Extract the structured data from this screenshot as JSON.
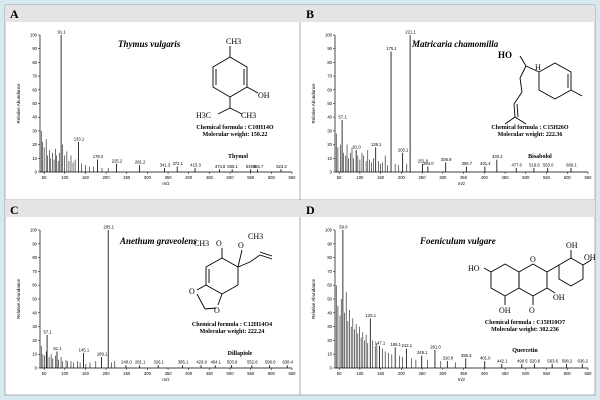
{
  "panels": [
    {
      "letter": "A",
      "species": "Thymus vulgaris",
      "formula": "Chemical formula : C10H14O",
      "mw": "Molecular weight: 150.22",
      "compound": "Thymol",
      "structure_labels": [
        "CH3",
        "OH",
        "H3C",
        "CH3"
      ],
      "chart_data": {
        "type": "bar",
        "ylabel": "Relative Abundance",
        "xlabel": "m/z",
        "xlim": [
          40,
          650
        ],
        "ylim": [
          0,
          100
        ],
        "xticks": [
          50,
          100,
          150,
          200,
          250,
          300,
          350,
          400,
          450,
          500,
          550,
          600,
          650
        ],
        "yticks": [
          0,
          10,
          20,
          30,
          40,
          50,
          60,
          70,
          80,
          90,
          100
        ],
        "labeled_peaks": [
          {
            "x": 91.1,
            "y": 100,
            "label": "91.1"
          },
          {
            "x": 133.1,
            "y": 22,
            "label": "133.1"
          },
          {
            "x": 179.2,
            "y": 9,
            "label": "179.2"
          },
          {
            "x": 225.2,
            "y": 6,
            "label": "225.2"
          },
          {
            "x": 281.2,
            "y": 5,
            "label": "281.2"
          },
          {
            "x": 341.3,
            "y": 3,
            "label": "341.3"
          },
          {
            "x": 372.1,
            "y": 4,
            "label": "372.1"
          },
          {
            "x": 415.3,
            "y": 3,
            "label": "415.3"
          },
          {
            "x": 474.8,
            "y": 2,
            "label": "474.8"
          },
          {
            "x": 505.1,
            "y": 2,
            "label": "505.1"
          },
          {
            "x": 549.9,
            "y": 2,
            "label": "549.9"
          },
          {
            "x": 566.7,
            "y": 2,
            "label": "566.7"
          },
          {
            "x": 623.3,
            "y": 2,
            "label": "623.3"
          }
        ],
        "minor_peaks": [
          {
            "x": 43,
            "y": 30
          },
          {
            "x": 46,
            "y": 22
          },
          {
            "x": 50,
            "y": 18
          },
          {
            "x": 55,
            "y": 24
          },
          {
            "x": 58,
            "y": 12
          },
          {
            "x": 63,
            "y": 16
          },
          {
            "x": 66,
            "y": 10
          },
          {
            "x": 70,
            "y": 14
          },
          {
            "x": 74,
            "y": 9
          },
          {
            "x": 77,
            "y": 17
          },
          {
            "x": 80,
            "y": 12
          },
          {
            "x": 84,
            "y": 8
          },
          {
            "x": 87,
            "y": 14
          },
          {
            "x": 95,
            "y": 20
          },
          {
            "x": 99,
            "y": 12
          },
          {
            "x": 105,
            "y": 15
          },
          {
            "x": 110,
            "y": 8
          },
          {
            "x": 115,
            "y": 12
          },
          {
            "x": 120,
            "y": 7
          },
          {
            "x": 125,
            "y": 9
          },
          {
            "x": 140,
            "y": 6
          },
          {
            "x": 150,
            "y": 5
          },
          {
            "x": 160,
            "y": 4
          },
          {
            "x": 170,
            "y": 4
          },
          {
            "x": 190,
            "y": 3
          },
          {
            "x": 205,
            "y": 3
          }
        ]
      }
    },
    {
      "letter": "B",
      "species": "Matricaria chamomilla",
      "formula": "Chemical formula : C15H26O",
      "mw": "Molecular weight: 222.36",
      "compound": "Bisabolol",
      "structure_labels": [
        "HO",
        "H"
      ],
      "chart_data": {
        "type": "bar",
        "ylabel": "Relative Abundance",
        "xlabel": "m/z",
        "xlim": [
          40,
          650
        ],
        "ylim": [
          0,
          100
        ],
        "xticks": [
          50,
          100,
          150,
          200,
          250,
          300,
          350,
          400,
          450,
          500,
          550,
          600,
          650
        ],
        "yticks": [
          0,
          10,
          20,
          30,
          40,
          50,
          60,
          70,
          80,
          90,
          100
        ],
        "labeled_peaks": [
          {
            "x": 221.1,
            "y": 100,
            "label": "221.1"
          },
          {
            "x": 175.1,
            "y": 88,
            "label": "175.1"
          },
          {
            "x": 57.1,
            "y": 38,
            "label": "57.1"
          },
          {
            "x": 91.0,
            "y": 16,
            "label": "91.0"
          },
          {
            "x": 138.1,
            "y": 18,
            "label": "138.1"
          },
          {
            "x": 203.1,
            "y": 14,
            "label": "203.1"
          },
          {
            "x": 251.0,
            "y": 6,
            "label": "251.0"
          },
          {
            "x": 264.0,
            "y": 4,
            "label": "264.0"
          },
          {
            "x": 306.9,
            "y": 7,
            "label": "306.9"
          },
          {
            "x": 356.7,
            "y": 4,
            "label": "356.7"
          },
          {
            "x": 401.4,
            "y": 4,
            "label": "401.4"
          },
          {
            "x": 430.2,
            "y": 9,
            "label": "430.2"
          },
          {
            "x": 477.0,
            "y": 3,
            "label": "477.0"
          },
          {
            "x": 519.6,
            "y": 3,
            "label": "519.6"
          },
          {
            "x": 553.0,
            "y": 3,
            "label": "553.0"
          },
          {
            "x": 609.1,
            "y": 3,
            "label": "609.1"
          }
        ],
        "minor_peaks": [
          {
            "x": 43,
            "y": 28
          },
          {
            "x": 47,
            "y": 18
          },
          {
            "x": 53,
            "y": 20
          },
          {
            "x": 61,
            "y": 14
          },
          {
            "x": 66,
            "y": 12
          },
          {
            "x": 69,
            "y": 20
          },
          {
            "x": 73,
            "y": 10
          },
          {
            "x": 77,
            "y": 14
          },
          {
            "x": 81,
            "y": 18
          },
          {
            "x": 85,
            "y": 10
          },
          {
            "x": 95,
            "y": 12
          },
          {
            "x": 100,
            "y": 9
          },
          {
            "x": 105,
            "y": 14
          },
          {
            "x": 109,
            "y": 12
          },
          {
            "x": 115,
            "y": 8
          },
          {
            "x": 119,
            "y": 16
          },
          {
            "x": 123,
            "y": 9
          },
          {
            "x": 128,
            "y": 7
          },
          {
            "x": 133,
            "y": 10
          },
          {
            "x": 145,
            "y": 8
          },
          {
            "x": 150,
            "y": 6
          },
          {
            "x": 155,
            "y": 7
          },
          {
            "x": 161,
            "y": 12
          },
          {
            "x": 167,
            "y": 5
          },
          {
            "x": 185,
            "y": 6
          },
          {
            "x": 193,
            "y": 5
          },
          {
            "x": 213,
            "y": 6
          }
        ]
      }
    },
    {
      "letter": "C",
      "species": "Anethum graveolens",
      "formula": "Chemical formula : C12H14O4",
      "mw": "Molecular weight: 222.24",
      "compound": "Dillapiole",
      "structure_labels": [
        "O",
        "CH3",
        "O",
        "CH3",
        "O",
        "O"
      ],
      "chart_data": {
        "type": "bar",
        "ylabel": "Relative Abundance",
        "xlabel": "m/z",
        "xlim": [
          40,
          650
        ],
        "ylim": [
          0,
          100
        ],
        "xticks": [
          50,
          100,
          150,
          200,
          250,
          300,
          350,
          400,
          450,
          500,
          550,
          600,
          650
        ],
        "yticks": [
          0,
          10,
          20,
          30,
          40,
          50,
          60,
          70,
          80,
          90,
          100
        ],
        "labeled_peaks": [
          {
            "x": 205.1,
            "y": 100,
            "label": "205.1"
          },
          {
            "x": 57.1,
            "y": 24,
            "label": "57.1"
          },
          {
            "x": 81.1,
            "y": 12,
            "label": "81.1"
          },
          {
            "x": 145.1,
            "y": 11,
            "label": "145.1"
          },
          {
            "x": 189.1,
            "y": 8,
            "label": "189.1"
          },
          {
            "x": 248.0,
            "y": 2,
            "label": "248.0"
          },
          {
            "x": 281.1,
            "y": 2,
            "label": "281.1"
          },
          {
            "x": 326.1,
            "y": 2,
            "label": "326.1"
          },
          {
            "x": 385.1,
            "y": 2,
            "label": "385.1"
          },
          {
            "x": 429.9,
            "y": 2,
            "label": "429.9"
          },
          {
            "x": 464.1,
            "y": 2,
            "label": "464.1"
          },
          {
            "x": 503.9,
            "y": 2,
            "label": "503.9"
          },
          {
            "x": 552.8,
            "y": 2,
            "label": "552.8"
          },
          {
            "x": 596.0,
            "y": 2,
            "label": "596.0"
          },
          {
            "x": 638.4,
            "y": 2,
            "label": "638.4"
          }
        ],
        "minor_peaks": [
          {
            "x": 43,
            "y": 16
          },
          {
            "x": 47,
            "y": 10
          },
          {
            "x": 51,
            "y": 9
          },
          {
            "x": 55,
            "y": 12
          },
          {
            "x": 62,
            "y": 8
          },
          {
            "x": 67,
            "y": 10
          },
          {
            "x": 71,
            "y": 7
          },
          {
            "x": 77,
            "y": 9
          },
          {
            "x": 85,
            "y": 6
          },
          {
            "x": 91,
            "y": 8
          },
          {
            "x": 95,
            "y": 5
          },
          {
            "x": 103,
            "y": 6
          },
          {
            "x": 107,
            "y": 5
          },
          {
            "x": 115,
            "y": 5
          },
          {
            "x": 121,
            "y": 4
          },
          {
            "x": 131,
            "y": 5
          },
          {
            "x": 137,
            "y": 4
          },
          {
            "x": 151,
            "y": 3
          },
          {
            "x": 161,
            "y": 4
          },
          {
            "x": 175,
            "y": 5
          },
          {
            "x": 213,
            "y": 4
          },
          {
            "x": 221,
            "y": 5
          }
        ]
      }
    },
    {
      "letter": "D",
      "species": "Foeniculum vulgare",
      "formula": "Chemical formula : C15H10O7",
      "mw": "Molecular weight: 302.236",
      "compound": "Quercetin",
      "structure_labels": [
        "HO",
        "O",
        "OH",
        "OH",
        "OH",
        "OH",
        "O"
      ],
      "chart_data": {
        "type": "bar",
        "ylabel": "Relative Abundance",
        "xlabel": "m/z",
        "xlim": [
          40,
          650
        ],
        "ylim": [
          0,
          100
        ],
        "xticks": [
          50,
          100,
          150,
          200,
          250,
          300,
          350,
          400,
          450,
          500,
          550,
          600,
          650
        ],
        "yticks": [
          0,
          10,
          20,
          30,
          40,
          50,
          60,
          70,
          80,
          90,
          100
        ],
        "labeled_peaks": [
          {
            "x": 59.0,
            "y": 100,
            "label": "59.0"
          },
          {
            "x": 125.1,
            "y": 36,
            "label": "125.1"
          },
          {
            "x": 147.1,
            "y": 16,
            "label": "147.1"
          },
          {
            "x": 185.1,
            "y": 15,
            "label": "185.1"
          },
          {
            "x": 212.1,
            "y": 14,
            "label": "212.1"
          },
          {
            "x": 249.1,
            "y": 9,
            "label": "249.1"
          },
          {
            "x": 281.0,
            "y": 13,
            "label": "281.0"
          },
          {
            "x": 310.8,
            "y": 5,
            "label": "310.8"
          },
          {
            "x": 355.3,
            "y": 7,
            "label": "355.3"
          },
          {
            "x": 401.0,
            "y": 5,
            "label": "401.0"
          },
          {
            "x": 442.1,
            "y": 3,
            "label": "442.1"
          },
          {
            "x": 490.5,
            "y": 3,
            "label": "490.5"
          },
          {
            "x": 520.6,
            "y": 3,
            "label": "520.6"
          },
          {
            "x": 563.6,
            "y": 3,
            "label": "563.6"
          },
          {
            "x": 598.2,
            "y": 3,
            "label": "598.2"
          },
          {
            "x": 636.2,
            "y": 3,
            "label": "636.2"
          }
        ],
        "minor_peaks": [
          {
            "x": 43,
            "y": 60
          },
          {
            "x": 47,
            "y": 45
          },
          {
            "x": 52,
            "y": 38
          },
          {
            "x": 55,
            "y": 50
          },
          {
            "x": 63,
            "y": 40
          },
          {
            "x": 67,
            "y": 55
          },
          {
            "x": 71,
            "y": 34
          },
          {
            "x": 75,
            "y": 42
          },
          {
            "x": 79,
            "y": 30
          },
          {
            "x": 83,
            "y": 36
          },
          {
            "x": 87,
            "y": 28
          },
          {
            "x": 91,
            "y": 32
          },
          {
            "x": 95,
            "y": 25
          },
          {
            "x": 99,
            "y": 30
          },
          {
            "x": 103,
            "y": 22
          },
          {
            "x": 107,
            "y": 26
          },
          {
            "x": 111,
            "y": 20
          },
          {
            "x": 115,
            "y": 24
          },
          {
            "x": 119,
            "y": 18
          },
          {
            "x": 131,
            "y": 20
          },
          {
            "x": 137,
            "y": 16
          },
          {
            "x": 141,
            "y": 18
          },
          {
            "x": 155,
            "y": 14
          },
          {
            "x": 161,
            "y": 12
          },
          {
            "x": 169,
            "y": 11
          },
          {
            "x": 177,
            "y": 10
          },
          {
            "x": 195,
            "y": 9
          },
          {
            "x": 203,
            "y": 8
          },
          {
            "x": 225,
            "y": 7
          },
          {
            "x": 235,
            "y": 6
          },
          {
            "x": 263,
            "y": 6
          },
          {
            "x": 295,
            "y": 5
          },
          {
            "x": 330,
            "y": 4
          }
        ]
      }
    }
  ]
}
